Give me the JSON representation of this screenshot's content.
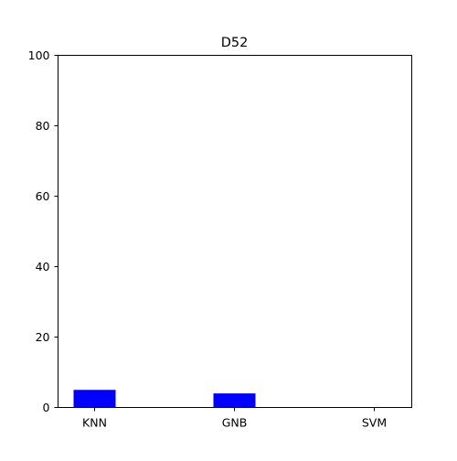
{
  "chart_data": {
    "type": "bar",
    "title": "D52",
    "xlabel": "",
    "ylabel": "",
    "categories": [
      "KNN",
      "GNB",
      "SVM"
    ],
    "values": [
      5,
      4,
      0
    ],
    "ylim": [
      0,
      100
    ],
    "yticks": [
      "0",
      "20",
      "40",
      "60",
      "80",
      "100"
    ],
    "bar_color": "#0000ff",
    "grid": false,
    "legend": "none"
  }
}
